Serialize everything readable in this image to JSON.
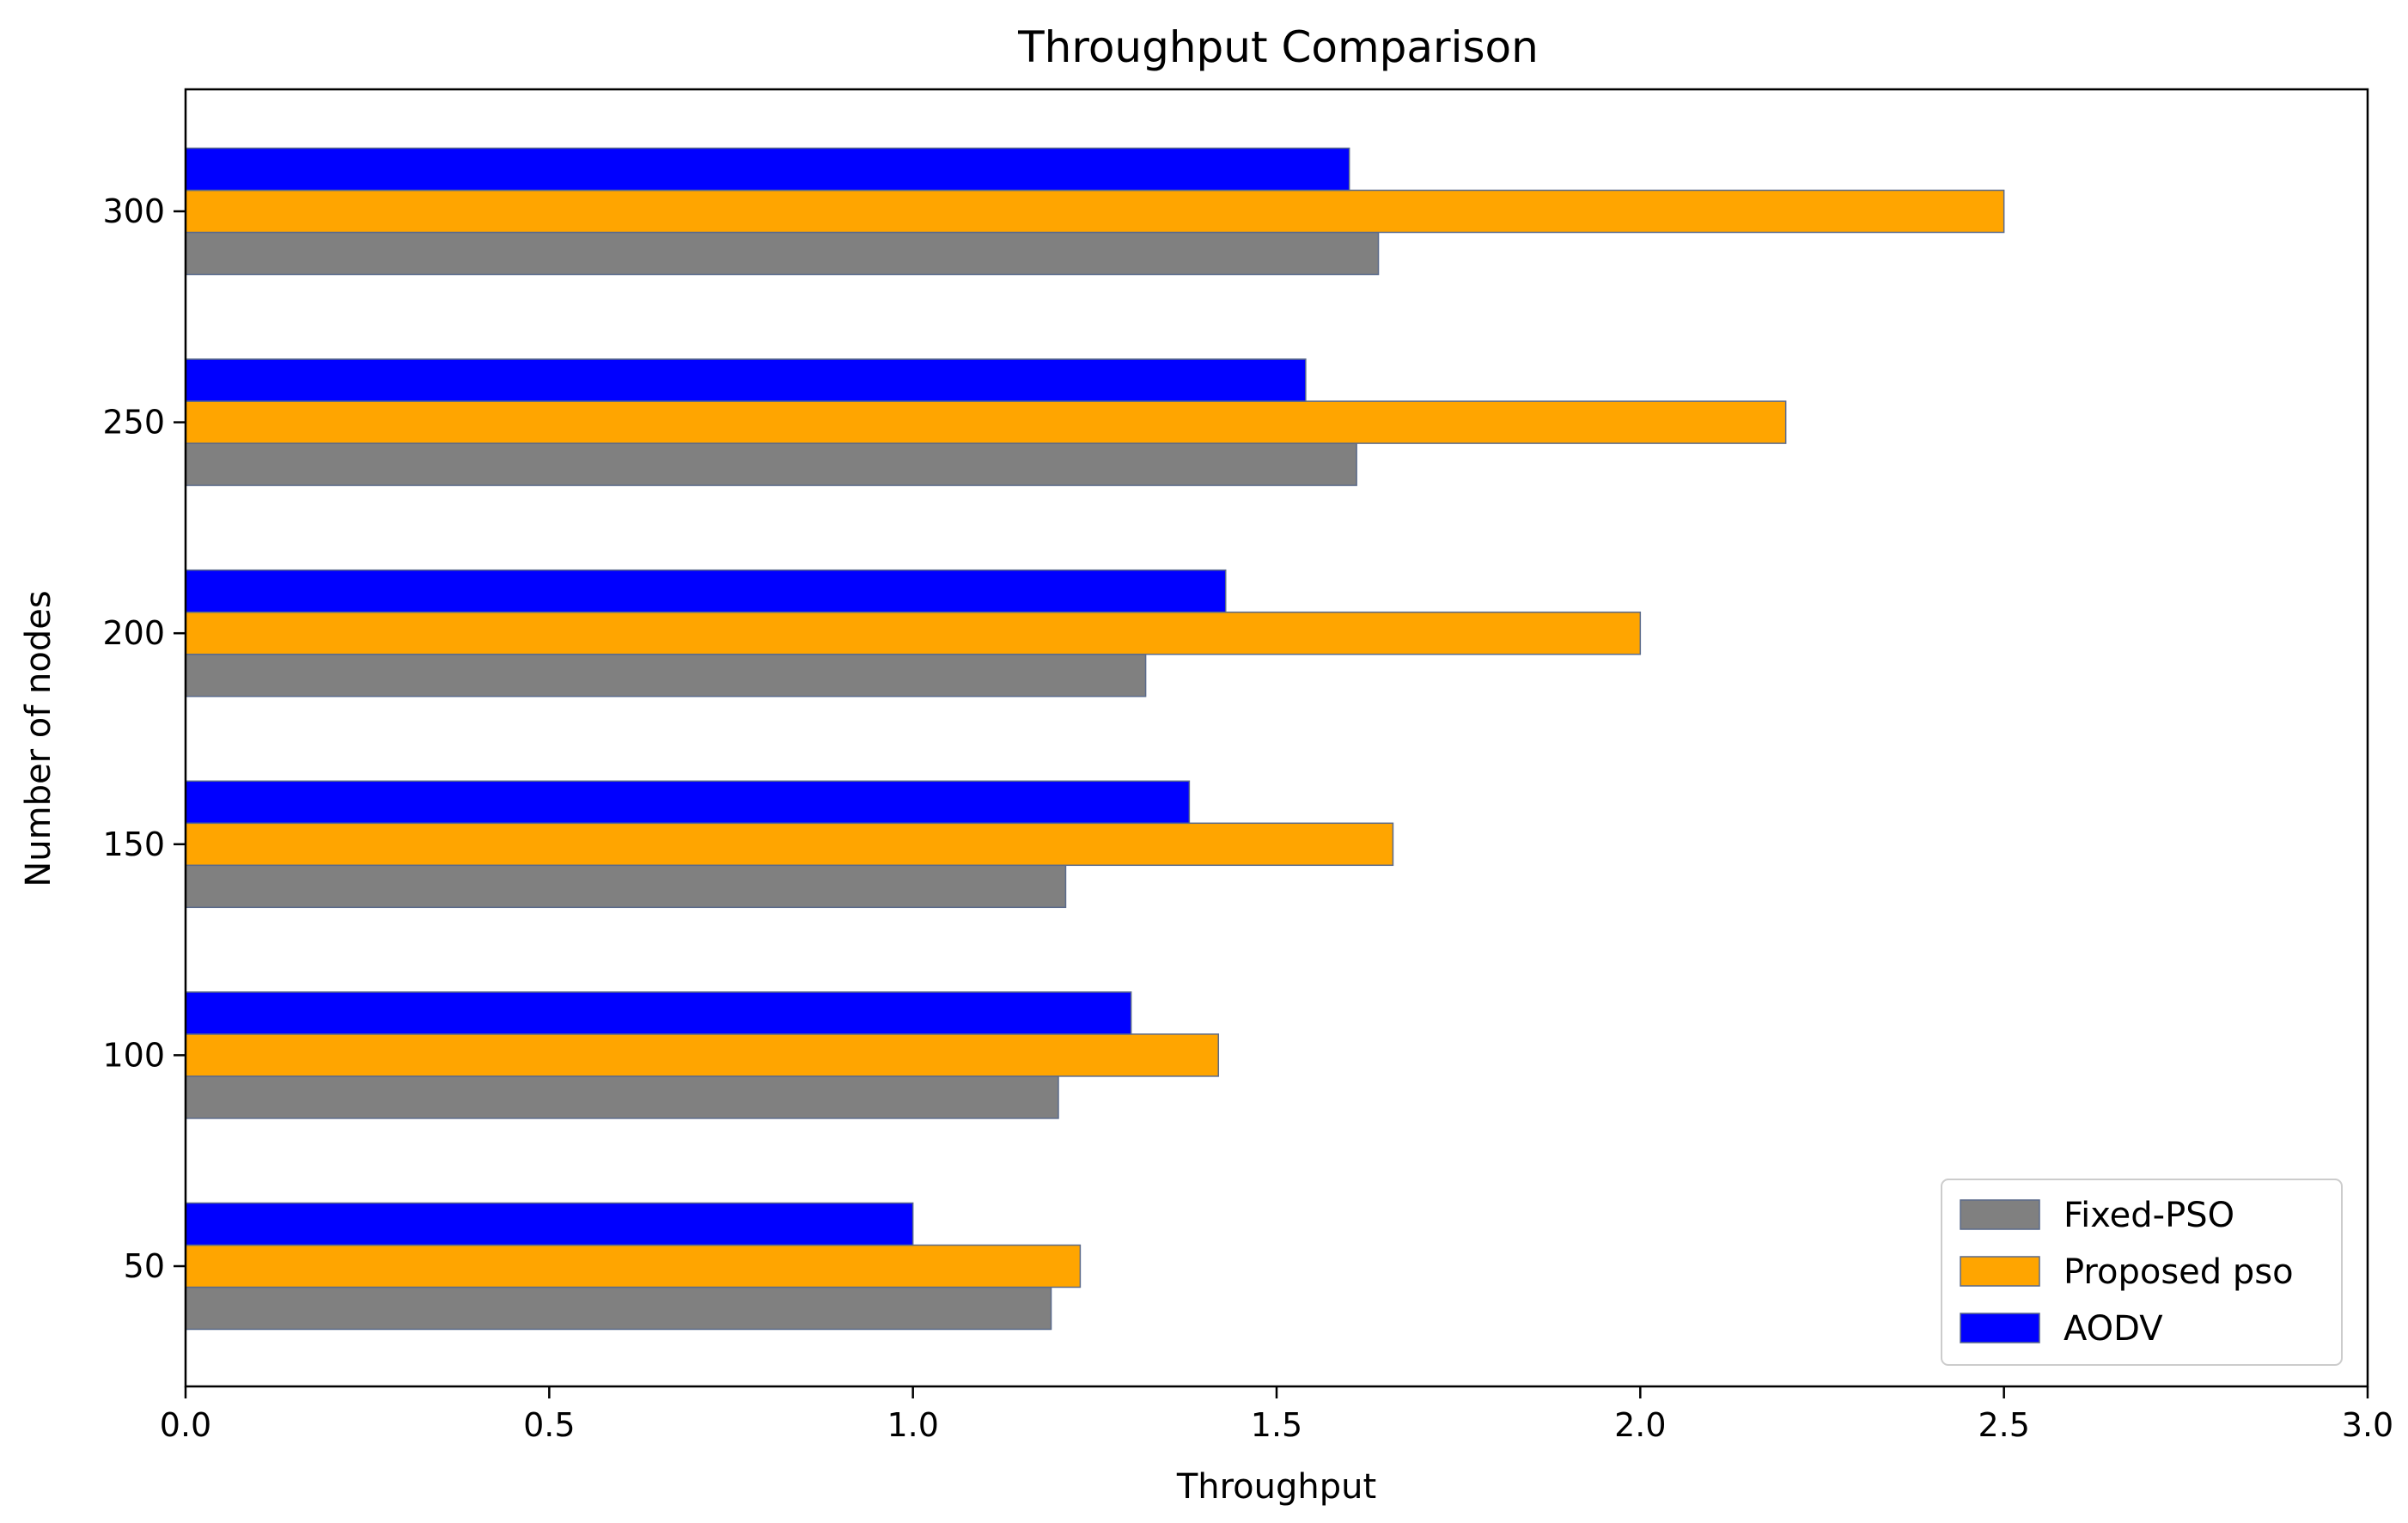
{
  "chart_data": {
    "type": "bar",
    "orientation": "horizontal",
    "title": "Throughput Comparison",
    "xlabel": "Throughput",
    "ylabel": "Number of nodes",
    "categories": [
      "50",
      "100",
      "150",
      "200",
      "250",
      "300"
    ],
    "series": [
      {
        "name": "Fixed-PSO",
        "color": "#808080",
        "values": [
          1.19,
          1.2,
          1.21,
          1.32,
          1.61,
          1.64
        ]
      },
      {
        "name": "Proposed pso",
        "color": "#FFA500",
        "values": [
          1.23,
          1.42,
          1.66,
          2.0,
          2.2,
          2.5
        ]
      },
      {
        "name": "AODV",
        "color": "#0000FF",
        "values": [
          1.0,
          1.3,
          1.38,
          1.43,
          1.54,
          1.6
        ]
      }
    ],
    "xlim": [
      0.0,
      3.0
    ],
    "xticks": [
      "0.0",
      "0.5",
      "1.0",
      "1.5",
      "2.0",
      "2.5",
      "3.0"
    ],
    "xtick_values": [
      0.0,
      0.5,
      1.0,
      1.5,
      2.0,
      2.5,
      3.0
    ],
    "grid": false,
    "legend_position": "bottom-right"
  }
}
